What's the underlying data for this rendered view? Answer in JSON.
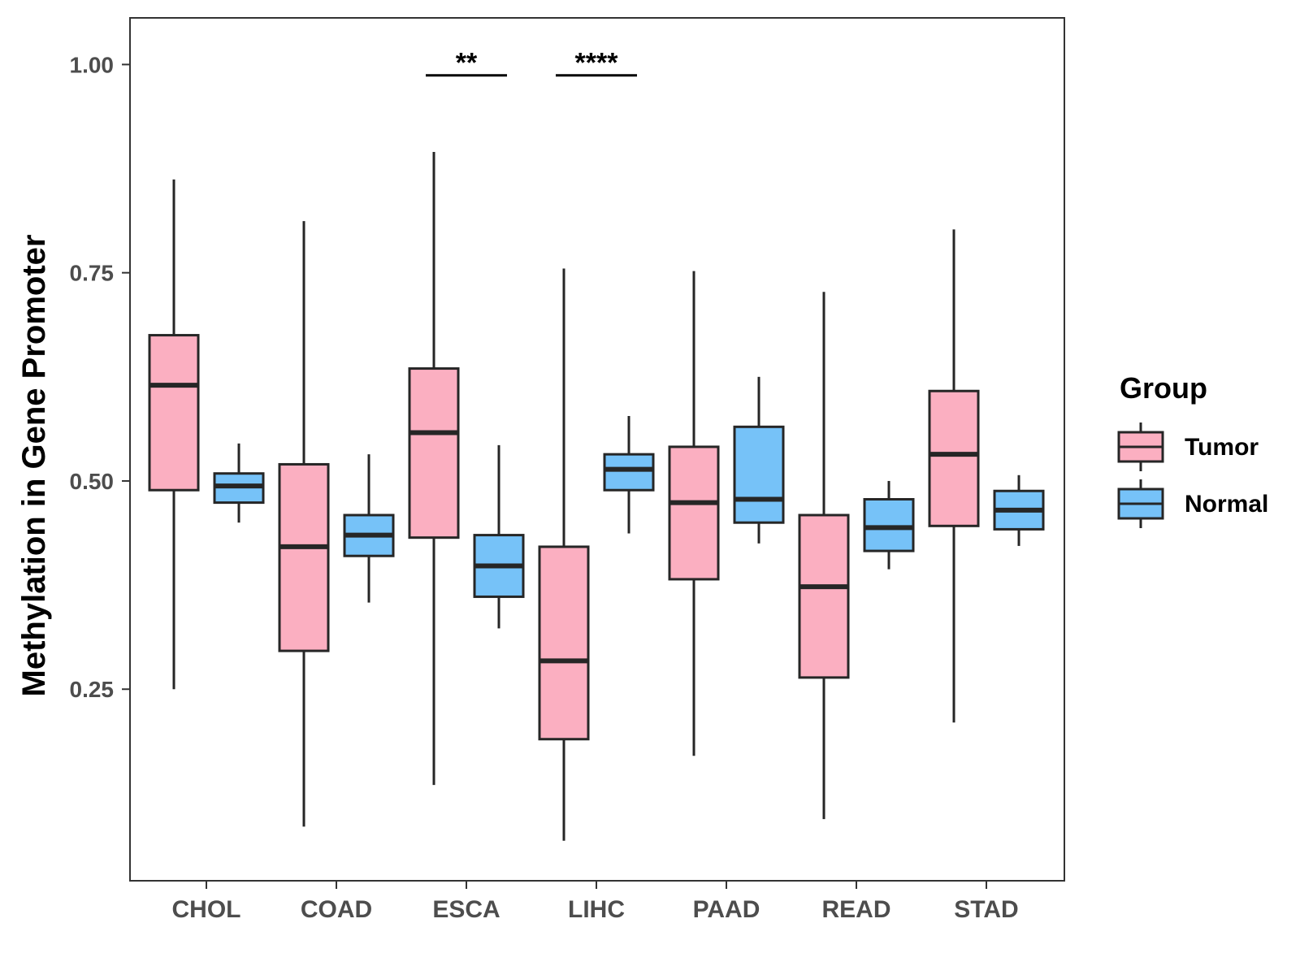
{
  "chart_data": {
    "type": "boxplot",
    "ylabel": "Methylation in Gene Promoter",
    "xlabel": "",
    "ylim": [
      0.02,
      1.056
    ],
    "y_ticks": [
      0.25,
      0.5,
      0.75,
      1.0
    ],
    "y_tick_labels": [
      "0.25",
      "0.50",
      "0.75",
      "1.00"
    ],
    "categories": [
      "CHOL",
      "COAD",
      "ESCA",
      "LIHC",
      "PAAD",
      "READ",
      "STAD"
    ],
    "legend": {
      "title": "Group",
      "position": "right",
      "entries": [
        {
          "name": "Tumor",
          "color": "#fbafc1"
        },
        {
          "name": "Normal",
          "color": "#76c2f8"
        }
      ]
    },
    "series": [
      {
        "name": "Tumor",
        "color": "#fbafc1",
        "boxes": [
          {
            "category": "CHOL",
            "min": 0.25,
            "q1": 0.489,
            "median": 0.615,
            "q3": 0.675,
            "max": 0.862
          },
          {
            "category": "COAD",
            "min": 0.085,
            "q1": 0.296,
            "median": 0.421,
            "q3": 0.52,
            "max": 0.812
          },
          {
            "category": "ESCA",
            "min": 0.135,
            "q1": 0.432,
            "median": 0.558,
            "q3": 0.635,
            "max": 0.895
          },
          {
            "category": "LIHC",
            "min": 0.068,
            "q1": 0.19,
            "median": 0.284,
            "q3": 0.421,
            "max": 0.755
          },
          {
            "category": "PAAD",
            "min": 0.17,
            "q1": 0.382,
            "median": 0.474,
            "q3": 0.541,
            "max": 0.752
          },
          {
            "category": "READ",
            "min": 0.094,
            "q1": 0.264,
            "median": 0.373,
            "q3": 0.459,
            "max": 0.727
          },
          {
            "category": "STAD",
            "min": 0.21,
            "q1": 0.446,
            "median": 0.532,
            "q3": 0.608,
            "max": 0.802
          }
        ]
      },
      {
        "name": "Normal",
        "color": "#76c2f8",
        "boxes": [
          {
            "category": "CHOL",
            "min": 0.45,
            "q1": 0.474,
            "median": 0.494,
            "q3": 0.509,
            "max": 0.545
          },
          {
            "category": "COAD",
            "min": 0.354,
            "q1": 0.41,
            "median": 0.435,
            "q3": 0.459,
            "max": 0.532
          },
          {
            "category": "ESCA",
            "min": 0.323,
            "q1": 0.361,
            "median": 0.398,
            "q3": 0.435,
            "max": 0.543
          },
          {
            "category": "LIHC",
            "min": 0.437,
            "q1": 0.489,
            "median": 0.514,
            "q3": 0.532,
            "max": 0.578
          },
          {
            "category": "PAAD",
            "min": 0.425,
            "q1": 0.45,
            "median": 0.478,
            "q3": 0.565,
            "max": 0.625
          },
          {
            "category": "READ",
            "min": 0.394,
            "q1": 0.416,
            "median": 0.444,
            "q3": 0.478,
            "max": 0.5
          },
          {
            "category": "STAD",
            "min": 0.422,
            "q1": 0.442,
            "median": 0.465,
            "q3": 0.488,
            "max": 0.507
          }
        ]
      }
    ],
    "annotations": [
      {
        "category": "ESCA",
        "label": "**",
        "y": 0.987
      },
      {
        "category": "LIHC",
        "label": "****",
        "y": 0.987
      }
    ],
    "grid": false
  }
}
